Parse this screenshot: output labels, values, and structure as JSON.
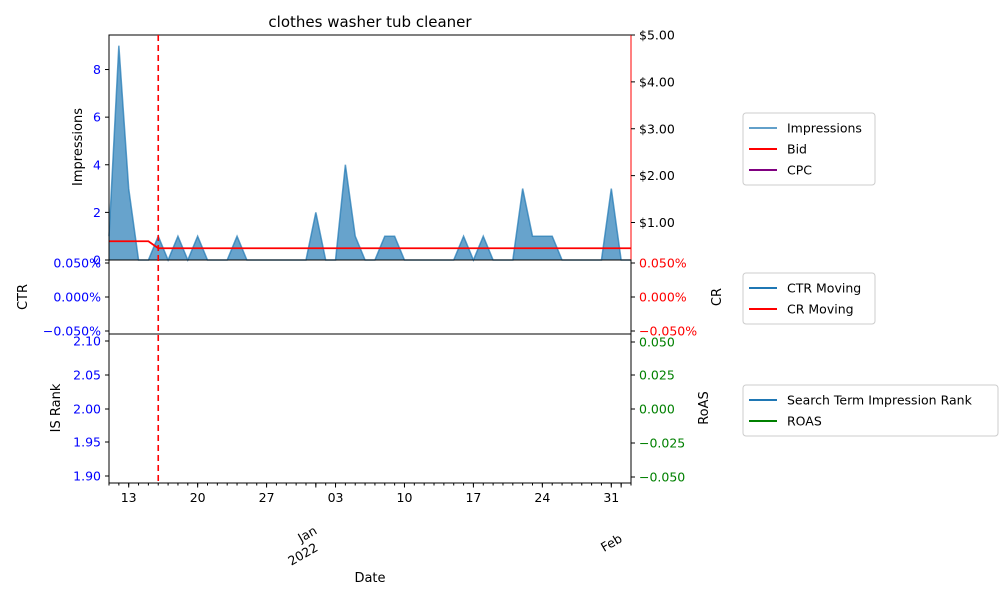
{
  "chart_data": [
    {
      "type": "area",
      "title": "clothes washer tub cleaner",
      "xlabel": "",
      "ylabel_left": "Impressions",
      "ylim_left": [
        0,
        9.45
      ],
      "yticks_left": [
        0,
        2,
        4,
        6,
        8
      ],
      "ylim_right": [
        0.2,
        5.0
      ],
      "yticks_right": [
        "$1.00",
        "$2.00",
        "$3.00",
        "$4.00",
        "$5.00"
      ],
      "ytick_values_right": [
        1,
        2,
        3,
        4,
        5
      ],
      "x_dates": [
        "2021-12-11",
        "2021-12-12",
        "2021-12-13",
        "2021-12-14",
        "2021-12-15",
        "2021-12-16",
        "2021-12-17",
        "2021-12-18",
        "2021-12-19",
        "2021-12-20",
        "2021-12-21",
        "2021-12-22",
        "2021-12-23",
        "2021-12-24",
        "2021-12-25",
        "2021-12-26",
        "2021-12-27",
        "2021-12-28",
        "2021-12-29",
        "2021-12-30",
        "2021-12-31",
        "2022-01-01",
        "2022-01-02",
        "2022-01-03",
        "2022-01-04",
        "2022-01-05",
        "2022-01-06",
        "2022-01-07",
        "2022-01-08",
        "2022-01-09",
        "2022-01-10",
        "2022-01-11",
        "2022-01-12",
        "2022-01-13",
        "2022-01-14",
        "2022-01-15",
        "2022-01-16",
        "2022-01-17",
        "2022-01-18",
        "2022-01-19",
        "2022-01-20",
        "2022-01-21",
        "2022-01-22",
        "2022-01-23",
        "2022-01-24",
        "2022-01-25",
        "2022-01-26",
        "2022-01-27",
        "2022-01-28",
        "2022-01-29",
        "2022-01-30",
        "2022-01-31",
        "2022-02-01",
        "2022-02-02"
      ],
      "series": [
        {
          "name": "Impressions",
          "color": "#1f77b4",
          "axis": "left",
          "values": [
            1,
            9,
            3,
            0,
            0,
            1,
            0,
            1,
            0,
            1,
            0,
            0,
            0,
            1,
            0,
            0,
            0,
            0,
            0,
            0,
            0,
            2,
            0,
            0,
            4,
            1,
            0,
            0,
            1,
            1,
            0,
            0,
            0,
            0,
            0,
            0,
            1,
            0,
            1,
            0,
            0,
            0,
            3,
            1,
            1,
            1,
            0,
            0,
            0,
            0,
            0,
            3,
            0,
            0
          ]
        },
        {
          "name": "Bid",
          "color": "#ff0000",
          "axis": "right",
          "values": [
            0.6,
            0.6,
            0.6,
            0.6,
            0.6,
            0.45,
            0.45,
            0.45,
            0.45,
            0.45,
            0.45,
            0.45,
            0.45,
            0.45,
            0.45,
            0.45,
            0.45,
            0.45,
            0.45,
            0.45,
            0.45,
            0.45,
            0.45,
            0.45,
            0.45,
            0.45,
            0.45,
            0.45,
            0.45,
            0.45,
            0.45,
            0.45,
            0.45,
            0.45,
            0.45,
            0.45,
            0.45,
            0.45,
            0.45,
            0.45,
            0.45,
            0.45,
            0.45,
            0.45,
            0.45,
            0.45,
            0.45,
            0.45,
            0.45,
            0.45,
            0.45,
            0.45,
            0.45,
            0.45
          ]
        },
        {
          "name": "CPC",
          "color": "#800080",
          "axis": "right",
          "values": []
        }
      ],
      "event_date": "2021-12-16",
      "legend": [
        "Impressions",
        "Bid",
        "CPC"
      ],
      "legend_position": "outside-right"
    },
    {
      "type": "line",
      "ylabel_left": "CTR",
      "ylabel_right": "CR",
      "ylim": [
        -0.05,
        0.05
      ],
      "yticks_left": [
        "0.050%",
        "0.000%",
        "−0.050%"
      ],
      "yticks_right": [
        "0.050%",
        "0.000%",
        "−0.050%"
      ],
      "series": [
        {
          "name": "CTR Moving",
          "color": "#1f77b4",
          "values": []
        },
        {
          "name": "CR Moving",
          "color": "#ff0000",
          "values": []
        }
      ],
      "legend": [
        "CTR Moving",
        "CR Moving"
      ]
    },
    {
      "type": "line",
      "xlabel": "Date",
      "ylabel_left": "IS Rank",
      "ylabel_right": "RoAS",
      "ylim_left": [
        1.89,
        2.11
      ],
      "yticks_left": [
        "2.10",
        "2.05",
        "2.00",
        "1.95",
        "1.90"
      ],
      "ylim_right": [
        -0.055,
        0.055
      ],
      "yticks_right": [
        "0.050",
        "0.025",
        "0.000",
        "−0.025",
        "−0.050"
      ],
      "xticks": [
        "13",
        "20",
        "27",
        "Jan",
        "2022",
        "03",
        "10",
        "17",
        "24",
        "31",
        "Feb"
      ],
      "series": [
        {
          "name": "Search Term Impression Rank",
          "color": "#1f77b4",
          "values": []
        },
        {
          "name": "ROAS",
          "color": "#008000",
          "values": []
        }
      ],
      "legend": [
        "Search Term Impression Rank",
        "ROAS"
      ]
    }
  ]
}
